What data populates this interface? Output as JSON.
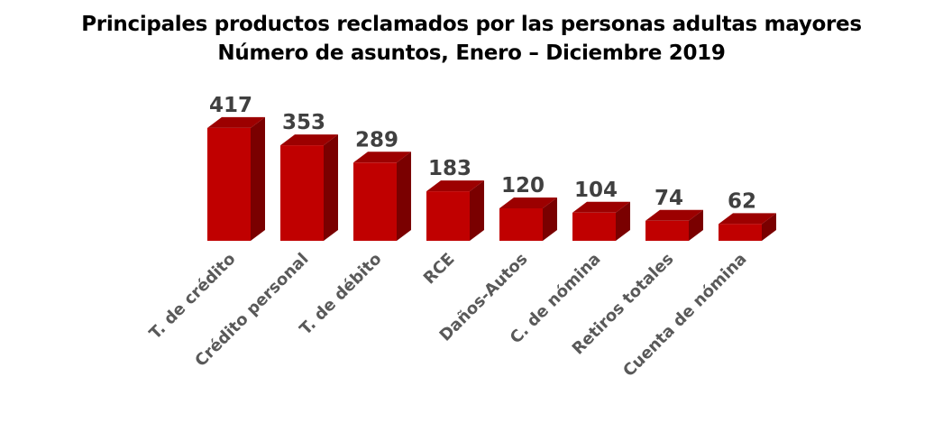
{
  "title": "Principales productos reclamados por las personas adultas mayores",
  "subtitle": "Número de asuntos, Enero – Diciembre 2019",
  "colors": {
    "front": "#c00000",
    "top": "#9c0000",
    "side": "#7a0000",
    "value_label": "#404040",
    "category_label": "#595959"
  },
  "chart_data": {
    "type": "bar",
    "title": "Principales productos reclamados por las personas adultas mayores",
    "subtitle": "Número de asuntos, Enero – Diciembre 2019",
    "xlabel": "",
    "ylabel": "",
    "grid": false,
    "legend": null,
    "style": "3d-column",
    "categories": [
      "T. de crédito",
      "Crédito personal",
      "T. de débito",
      "RCE",
      "Daños-Autos",
      "C. de nómina",
      "Retiros totales",
      "Cuenta de nómina"
    ],
    "values": [
      417,
      353,
      289,
      183,
      120,
      104,
      74,
      62
    ],
    "ylim": [
      0,
      420
    ]
  }
}
